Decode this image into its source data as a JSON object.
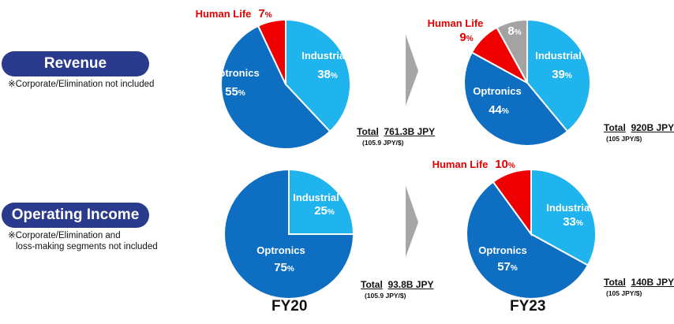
{
  "rows": [
    {
      "title": "Revenue",
      "note_lines": [
        "※Corporate/Elimination not included"
      ]
    },
    {
      "title": "Operating Income",
      "note_lines": [
        "※Corporate/Elimination and",
        "loss-making segments not included"
      ]
    }
  ],
  "years": [
    "FY20",
    "FY23"
  ],
  "colors": {
    "industrial_tape": "#1fb4ee",
    "optronics": "#0d6ec2",
    "human_life": "#ee0000",
    "other": "#a3a3a3",
    "title_pill": "#2a3a8c",
    "arrow": "#a6a6a6"
  },
  "chart_data": [
    {
      "type": "pie",
      "row": "Revenue",
      "year": "FY20",
      "slices": [
        {
          "name": "Industrial Tape",
          "value": 38,
          "label": "38%"
        },
        {
          "name": "Optronics",
          "value": 55,
          "label": "55%"
        },
        {
          "name": "Human Life",
          "value": 7,
          "label": "7%"
        }
      ],
      "total_label": "Total",
      "total_value": "761.3B JPY",
      "rate": "(105.9 JPY/$)"
    },
    {
      "type": "pie",
      "row": "Revenue",
      "year": "FY23",
      "slices": [
        {
          "name": "Industrial Tape",
          "value": 39,
          "label": "39%"
        },
        {
          "name": "Optronics",
          "value": 44,
          "label": "44%"
        },
        {
          "name": "Human Life",
          "value": 9,
          "label": "9%"
        },
        {
          "name": "",
          "value": 8,
          "label": "8%"
        }
      ],
      "total_label": "Total",
      "total_value": "920B JPY",
      "rate": "(105 JPY/$)"
    },
    {
      "type": "pie",
      "row": "Operating Income",
      "year": "FY20",
      "slices": [
        {
          "name": "Industrial Tape",
          "value": 25,
          "label": "25%"
        },
        {
          "name": "Optronics",
          "value": 75,
          "label": "75%"
        }
      ],
      "total_label": "Total",
      "total_value": "93.8B JPY",
      "rate": "(105.9 JPY/$)"
    },
    {
      "type": "pie",
      "row": "Operating Income",
      "year": "FY23",
      "slices": [
        {
          "name": "Industrial Tape",
          "value": 33,
          "label": "33%"
        },
        {
          "name": "Optronics",
          "value": 57,
          "label": "57%"
        },
        {
          "name": "Human Life",
          "value": 10,
          "label": "10%"
        }
      ],
      "total_label": "Total",
      "total_value": "140B JPY",
      "rate": "(105 JPY/$)"
    }
  ]
}
